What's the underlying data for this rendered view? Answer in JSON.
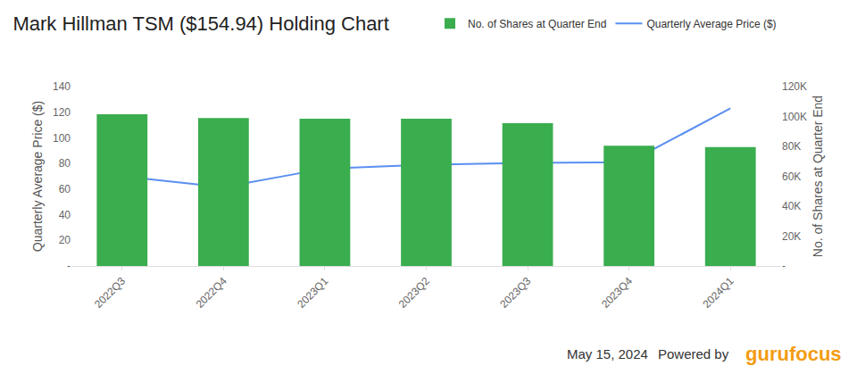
{
  "chart_data": {
    "type": "bar",
    "title": "Mark Hillman TSM ($154.94) Holding Chart",
    "categories": [
      "2022Q3",
      "2022Q4",
      "2023Q1",
      "2023Q2",
      "2023Q3",
      "2023Q4",
      "2024Q1"
    ],
    "series": [
      {
        "name": "No. of Shares at Quarter End",
        "type": "bar",
        "axis": "y2",
        "color": "#3aad4f",
        "values": [
          101500,
          99000,
          98500,
          98500,
          95500,
          80500,
          79500
        ]
      },
      {
        "name": "Quarterly Average Price ($)",
        "type": "line",
        "color": "#5a8ff0",
        "values": [
          70,
          61.5,
          76,
          79,
          80.5,
          81,
          123
        ]
      }
    ],
    "y_label": "Quarterly Average Price ($)",
    "y2_label": "No. of Shares at Quarter End",
    "ylim": [
      0,
      140
    ],
    "yticks": [
      {
        "value": 0,
        "label": "-"
      },
      20,
      40,
      60,
      80,
      100,
      120,
      140
    ],
    "y2lim": [
      0,
      120000
    ],
    "y2ticks": [
      {
        "value": 0,
        "label": "-"
      },
      {
        "value": 20000,
        "label": "20K"
      },
      {
        "value": 40000,
        "label": "40K"
      },
      {
        "value": 60000,
        "label": "60K"
      },
      {
        "value": 80000,
        "label": "80K"
      },
      {
        "value": 100000,
        "label": "100K"
      },
      {
        "value": 120000,
        "label": "120K"
      }
    ],
    "grid": false,
    "legend": "top right",
    "annotations": [
      "May 15, 2024",
      "Powered by",
      "gurufocus"
    ]
  }
}
